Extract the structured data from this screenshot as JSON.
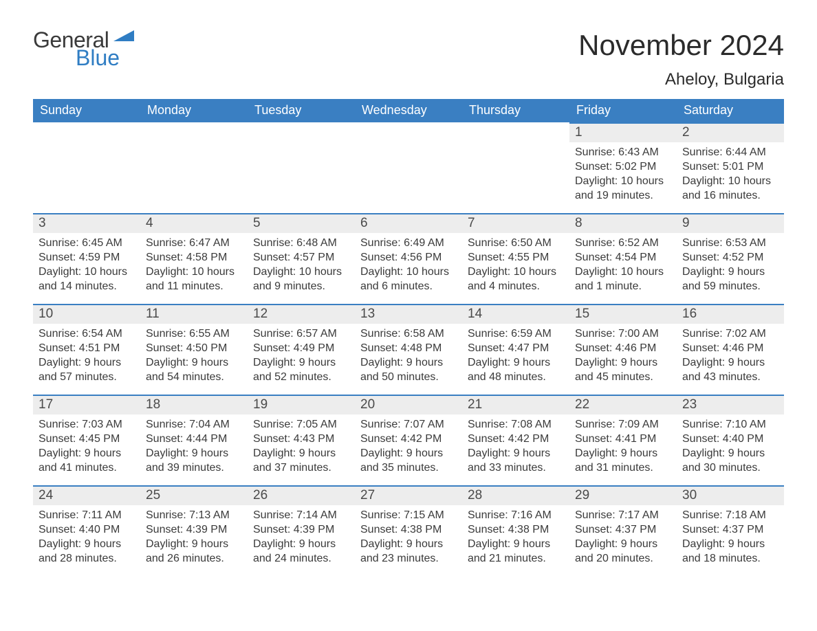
{
  "brand": {
    "word1": "General",
    "word2": "Blue",
    "mark_color": "#2f7dc3",
    "word1_color": "#3a3a3a",
    "word2_color": "#2f7dc3"
  },
  "header": {
    "month_title": "November 2024",
    "location": "Aheloy, Bulgaria"
  },
  "style": {
    "header_bg": "#3a7fc2",
    "header_fg": "#ffffff",
    "daynum_bg": "#ededed",
    "cell_border_top": "#3a7fc2",
    "text_color": "#3a3a3a",
    "page_bg": "#ffffff",
    "month_fontsize": 42,
    "location_fontsize": 24,
    "dayheader_fontsize": 18,
    "body_fontsize": 16
  },
  "weekdays": [
    "Sunday",
    "Monday",
    "Tuesday",
    "Wednesday",
    "Thursday",
    "Friday",
    "Saturday"
  ],
  "weeks": [
    [
      null,
      null,
      null,
      null,
      null,
      {
        "n": "1",
        "sunrise": "6:43 AM",
        "sunset": "5:02 PM",
        "daylight": "10 hours and 19 minutes."
      },
      {
        "n": "2",
        "sunrise": "6:44 AM",
        "sunset": "5:01 PM",
        "daylight": "10 hours and 16 minutes."
      }
    ],
    [
      {
        "n": "3",
        "sunrise": "6:45 AM",
        "sunset": "4:59 PM",
        "daylight": "10 hours and 14 minutes."
      },
      {
        "n": "4",
        "sunrise": "6:47 AM",
        "sunset": "4:58 PM",
        "daylight": "10 hours and 11 minutes."
      },
      {
        "n": "5",
        "sunrise": "6:48 AM",
        "sunset": "4:57 PM",
        "daylight": "10 hours and 9 minutes."
      },
      {
        "n": "6",
        "sunrise": "6:49 AM",
        "sunset": "4:56 PM",
        "daylight": "10 hours and 6 minutes."
      },
      {
        "n": "7",
        "sunrise": "6:50 AM",
        "sunset": "4:55 PM",
        "daylight": "10 hours and 4 minutes."
      },
      {
        "n": "8",
        "sunrise": "6:52 AM",
        "sunset": "4:54 PM",
        "daylight": "10 hours and 1 minute."
      },
      {
        "n": "9",
        "sunrise": "6:53 AM",
        "sunset": "4:52 PM",
        "daylight": "9 hours and 59 minutes."
      }
    ],
    [
      {
        "n": "10",
        "sunrise": "6:54 AM",
        "sunset": "4:51 PM",
        "daylight": "9 hours and 57 minutes."
      },
      {
        "n": "11",
        "sunrise": "6:55 AM",
        "sunset": "4:50 PM",
        "daylight": "9 hours and 54 minutes."
      },
      {
        "n": "12",
        "sunrise": "6:57 AM",
        "sunset": "4:49 PM",
        "daylight": "9 hours and 52 minutes."
      },
      {
        "n": "13",
        "sunrise": "6:58 AM",
        "sunset": "4:48 PM",
        "daylight": "9 hours and 50 minutes."
      },
      {
        "n": "14",
        "sunrise": "6:59 AM",
        "sunset": "4:47 PM",
        "daylight": "9 hours and 48 minutes."
      },
      {
        "n": "15",
        "sunrise": "7:00 AM",
        "sunset": "4:46 PM",
        "daylight": "9 hours and 45 minutes."
      },
      {
        "n": "16",
        "sunrise": "7:02 AM",
        "sunset": "4:46 PM",
        "daylight": "9 hours and 43 minutes."
      }
    ],
    [
      {
        "n": "17",
        "sunrise": "7:03 AM",
        "sunset": "4:45 PM",
        "daylight": "9 hours and 41 minutes."
      },
      {
        "n": "18",
        "sunrise": "7:04 AM",
        "sunset": "4:44 PM",
        "daylight": "9 hours and 39 minutes."
      },
      {
        "n": "19",
        "sunrise": "7:05 AM",
        "sunset": "4:43 PM",
        "daylight": "9 hours and 37 minutes."
      },
      {
        "n": "20",
        "sunrise": "7:07 AM",
        "sunset": "4:42 PM",
        "daylight": "9 hours and 35 minutes."
      },
      {
        "n": "21",
        "sunrise": "7:08 AM",
        "sunset": "4:42 PM",
        "daylight": "9 hours and 33 minutes."
      },
      {
        "n": "22",
        "sunrise": "7:09 AM",
        "sunset": "4:41 PM",
        "daylight": "9 hours and 31 minutes."
      },
      {
        "n": "23",
        "sunrise": "7:10 AM",
        "sunset": "4:40 PM",
        "daylight": "9 hours and 30 minutes."
      }
    ],
    [
      {
        "n": "24",
        "sunrise": "7:11 AM",
        "sunset": "4:40 PM",
        "daylight": "9 hours and 28 minutes."
      },
      {
        "n": "25",
        "sunrise": "7:13 AM",
        "sunset": "4:39 PM",
        "daylight": "9 hours and 26 minutes."
      },
      {
        "n": "26",
        "sunrise": "7:14 AM",
        "sunset": "4:39 PM",
        "daylight": "9 hours and 24 minutes."
      },
      {
        "n": "27",
        "sunrise": "7:15 AM",
        "sunset": "4:38 PM",
        "daylight": "9 hours and 23 minutes."
      },
      {
        "n": "28",
        "sunrise": "7:16 AM",
        "sunset": "4:38 PM",
        "daylight": "9 hours and 21 minutes."
      },
      {
        "n": "29",
        "sunrise": "7:17 AM",
        "sunset": "4:37 PM",
        "daylight": "9 hours and 20 minutes."
      },
      {
        "n": "30",
        "sunrise": "7:18 AM",
        "sunset": "4:37 PM",
        "daylight": "9 hours and 18 minutes."
      }
    ]
  ],
  "labels": {
    "sunrise": "Sunrise:",
    "sunset": "Sunset:",
    "daylight": "Daylight:"
  }
}
